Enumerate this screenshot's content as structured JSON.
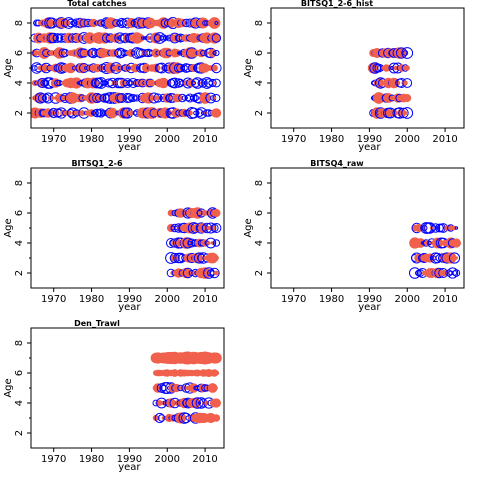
{
  "chart_data": [
    {
      "type": "scatter",
      "title": "Total catches",
      "xlabel": "year",
      "ylabel": "Age",
      "xlim": [
        1964,
        2015
      ],
      "ylim": [
        1,
        9
      ],
      "xticks": [
        1970,
        1980,
        1990,
        2000,
        2010
      ],
      "yticks": [
        2,
        4,
        6,
        8
      ],
      "pattern": "dense",
      "years": [
        1965,
        2013
      ],
      "ages": [
        2,
        3,
        4,
        5,
        6,
        7,
        8
      ],
      "positive_color": "#f0604d",
      "negative_color": "#0000ff"
    },
    {
      "type": "scatter",
      "title": "BITSQ1_2-6_hist",
      "xlabel": "year",
      "ylabel": "Age",
      "xlim": [
        1964,
        2015
      ],
      "ylim": [
        1,
        9
      ],
      "xticks": [
        1970,
        1980,
        1990,
        2000,
        2010
      ],
      "yticks": [
        2,
        4,
        6,
        8
      ],
      "pattern": "dense",
      "years": [
        1991,
        2000
      ],
      "ages": [
        2,
        3,
        4,
        5,
        6
      ],
      "positive_color": "#f0604d",
      "negative_color": "#0000ff"
    },
    {
      "type": "scatter",
      "title": "BITSQ1_2-6",
      "xlabel": "year",
      "ylabel": "Age",
      "xlim": [
        1964,
        2015
      ],
      "ylim": [
        1,
        9
      ],
      "xticks": [
        1970,
        1980,
        1990,
        2000,
        2010
      ],
      "yticks": [
        2,
        4,
        6,
        8
      ],
      "pattern": "dense",
      "years": [
        2001,
        2013
      ],
      "ages": [
        2,
        3,
        4,
        5,
        6
      ],
      "positive_color": "#f0604d",
      "negative_color": "#0000ff"
    },
    {
      "type": "scatter",
      "title": "BITSQ4_raw",
      "xlabel": "year",
      "ylabel": "Age",
      "xlim": [
        1964,
        2015
      ],
      "ylim": [
        1,
        9
      ],
      "xticks": [
        1970,
        1980,
        1990,
        2000,
        2010
      ],
      "yticks": [
        2,
        4,
        6,
        8
      ],
      "pattern": "dense",
      "years": [
        2002,
        2013
      ],
      "ages": [
        2,
        3,
        4,
        5
      ],
      "positive_color": "#f0604d",
      "negative_color": "#0000ff"
    },
    {
      "type": "scatter",
      "title": "Den_Trawl",
      "xlabel": "year",
      "ylabel": "Age",
      "xlim": [
        1964,
        2015
      ],
      "ylim": [
        1,
        9
      ],
      "xticks": [
        1970,
        1980,
        1990,
        2000,
        2010
      ],
      "yticks": [
        2,
        4,
        6,
        8
      ],
      "pattern": "trawl",
      "years": [
        1997,
        2013
      ],
      "ages": [
        3,
        4,
        5,
        6,
        7
      ],
      "positive_color": "#f0604d",
      "negative_color": "#0000ff"
    }
  ]
}
